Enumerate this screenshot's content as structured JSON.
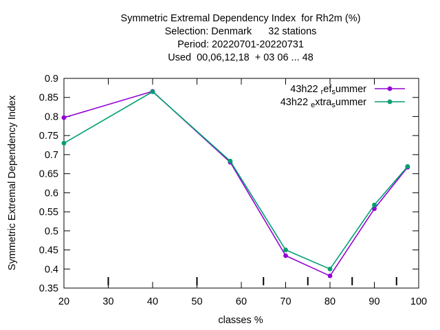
{
  "chart_data": {
    "type": "line",
    "title_lines": [
      "Symmetric Extremal Dependency Index  for Rh2m (%)",
      "Selection: Denmark      32 stations",
      "Period: 20220701-20220731",
      "Used  00,06,12,18  + 03 06 ... 48"
    ],
    "xlabel": "classes %",
    "ylabel": "Symmetric Extremal Dependency Index",
    "xlim": [
      20,
      100
    ],
    "ylim": [
      0.35,
      0.9
    ],
    "xticks": [
      20,
      30,
      40,
      50,
      60,
      70,
      80,
      90,
      100
    ],
    "xtick_labels": [
      "20",
      "30",
      "40",
      "50",
      "60",
      "70",
      "80",
      "90",
      "100"
    ],
    "yticks": [
      0.35,
      0.4,
      0.45,
      0.5,
      0.55,
      0.6,
      0.65,
      0.7,
      0.75,
      0.8,
      0.85,
      0.9
    ],
    "ytick_labels": [
      "0.35",
      "0.4",
      "0.45",
      "0.5",
      "0.55",
      "0.6",
      "0.65",
      "0.7",
      "0.75",
      "0.8",
      "0.85",
      "0.9"
    ],
    "inner_bottom_ticks": [
      30,
      50,
      65,
      75,
      85,
      95
    ],
    "legend_position": "top-right",
    "grid": false,
    "series": [
      {
        "name": "43h22 _ref_summer",
        "legend_parts": [
          {
            "t": "43h22 ",
            "sub": false
          },
          {
            "t": "r",
            "sub": true
          },
          {
            "t": "ef",
            "sub": false
          },
          {
            "t": "s",
            "sub": true
          },
          {
            "t": "ummer",
            "sub": false
          }
        ],
        "color": "#9400d3",
        "x": [
          20,
          40,
          57.5,
          70,
          80,
          90,
          97.5
        ],
        "y": [
          0.797,
          0.866,
          0.68,
          0.435,
          0.382,
          0.558,
          0.667
        ]
      },
      {
        "name": "43h22 _extra_summer",
        "legend_parts": [
          {
            "t": "43h22 ",
            "sub": false
          },
          {
            "t": "e",
            "sub": true
          },
          {
            "t": "xtra",
            "sub": false
          },
          {
            "t": "s",
            "sub": true
          },
          {
            "t": "ummer",
            "sub": false
          }
        ],
        "color": "#009e73",
        "x": [
          20,
          40,
          57.5,
          70,
          80,
          90,
          97.5
        ],
        "y": [
          0.73,
          0.865,
          0.683,
          0.45,
          0.4,
          0.568,
          0.669
        ]
      }
    ]
  }
}
